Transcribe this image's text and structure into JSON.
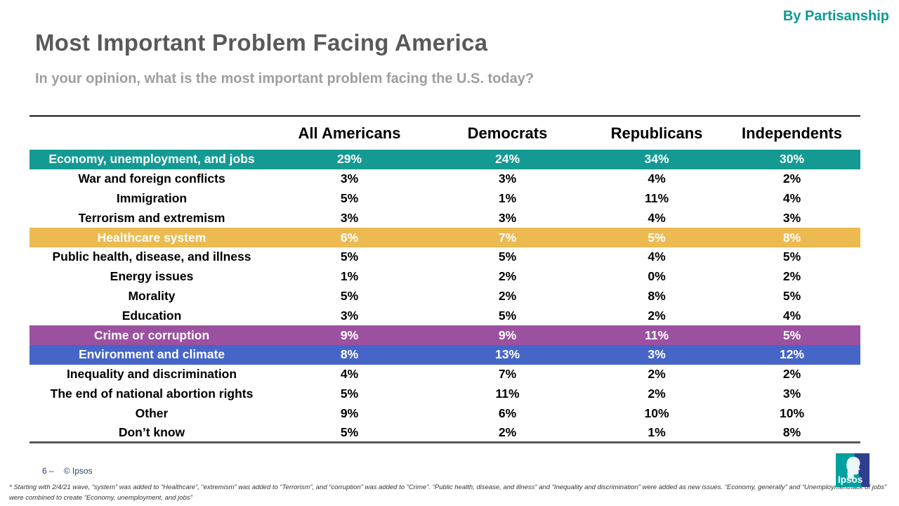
{
  "page": {
    "corner_label": "By Partisanship",
    "title": "Most Important Problem Facing America",
    "subtitle": "In your opinion, what is the most important problem facing the U.S. today?",
    "page_number": "6 –",
    "copyright": "© Ipsos",
    "footnote": "* Starting with 2/4/21 wave, “system” was added to “Healthcare”, “extremism” was added to “Terrorism”, and “corruption” was added to “Crime”. “Public health, disease, and illness” and “Inequality and discrimination” were added as new issues. “Economy, generally” and “Unemployment/lack of jobs” were combined to create “Economy, unemployment, and jobs”",
    "logo_text": "Ipsos"
  },
  "colors": {
    "accent_teal": "#0d9a94",
    "row_teal": "#149a93",
    "row_gold": "#ecba50",
    "row_purple": "#9c51a0",
    "row_blue": "#4565c8",
    "title_gray": "#595959",
    "subtitle_gray": "#9e9e9e",
    "logo_teal": "#00a0a0",
    "logo_navy": "#2e3f8f"
  },
  "chart_data": {
    "type": "table",
    "title": "Most Important Problem Facing America",
    "columns": [
      "",
      "All Americans",
      "Democrats",
      "Republicans",
      "Independents"
    ],
    "rows": [
      {
        "label": "Economy, unemployment, and jobs",
        "values": [
          "29%",
          "24%",
          "34%",
          "30%"
        ],
        "highlight": "row_teal"
      },
      {
        "label": "War and foreign conflicts",
        "values": [
          "3%",
          "3%",
          "4%",
          "2%"
        ],
        "highlight": null
      },
      {
        "label": "Immigration",
        "values": [
          "5%",
          "1%",
          "11%",
          "4%"
        ],
        "highlight": null
      },
      {
        "label": "Terrorism and extremism",
        "values": [
          "3%",
          "3%",
          "4%",
          "3%"
        ],
        "highlight": null
      },
      {
        "label": "Healthcare system",
        "values": [
          "6%",
          "7%",
          "5%",
          "8%"
        ],
        "highlight": "row_gold"
      },
      {
        "label": "Public health, disease, and illness",
        "values": [
          "5%",
          "5%",
          "4%",
          "5%"
        ],
        "highlight": null
      },
      {
        "label": "Energy issues",
        "values": [
          "1%",
          "2%",
          "0%",
          "2%"
        ],
        "highlight": null
      },
      {
        "label": "Morality",
        "values": [
          "5%",
          "2%",
          "8%",
          "5%"
        ],
        "highlight": null
      },
      {
        "label": "Education",
        "values": [
          "3%",
          "5%",
          "2%",
          "4%"
        ],
        "highlight": null
      },
      {
        "label": "Crime or corruption",
        "values": [
          "9%",
          "9%",
          "11%",
          "5%"
        ],
        "highlight": "row_purple"
      },
      {
        "label": "Environment and climate",
        "values": [
          "8%",
          "13%",
          "3%",
          "12%"
        ],
        "highlight": "row_blue"
      },
      {
        "label": "Inequality and discrimination",
        "values": [
          "4%",
          "7%",
          "2%",
          "2%"
        ],
        "highlight": null
      },
      {
        "label": "The end of national abortion rights",
        "values": [
          "5%",
          "11%",
          "2%",
          "3%"
        ],
        "highlight": null
      },
      {
        "label": "Other",
        "values": [
          "9%",
          "6%",
          "10%",
          "10%"
        ],
        "highlight": null
      },
      {
        "label": "Don’t know",
        "values": [
          "5%",
          "2%",
          "1%",
          "8%"
        ],
        "highlight": null
      }
    ]
  }
}
